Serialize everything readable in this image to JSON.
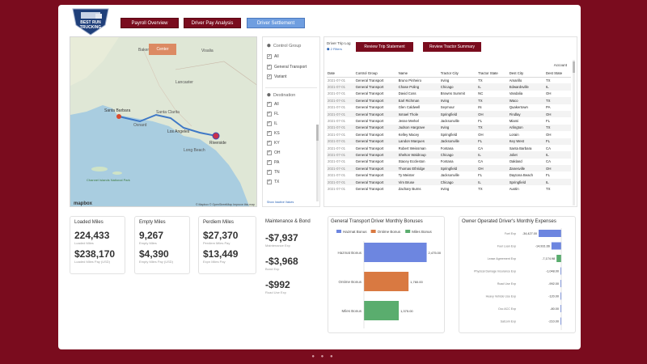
{
  "logo": {
    "line1": "BEST RUN",
    "line2": "TRUCKING"
  },
  "nav": {
    "payroll": "Payroll Overview",
    "driver_pay": "Driver Pay Analysis",
    "settlement": "Driver Settlement"
  },
  "map": {
    "center_button": "Center",
    "places": [
      "Bakersfield",
      "Visalia",
      "Lancaster",
      "Santa Barbara",
      "Oxnard",
      "Santa Clarita",
      "Los Angeles",
      "Long Beach",
      "Riverside",
      "Channel Islands National Park"
    ],
    "attribution": "© Mapbox © OpenStreetMap Improve this map",
    "brand": "mapbox"
  },
  "filters": {
    "control_group": {
      "title": "Control Group",
      "items": [
        "All",
        "General Transport",
        "Variant"
      ]
    },
    "destination": {
      "title": "Destination",
      "items": [
        "All",
        "FL",
        "IL",
        "KS",
        "KY",
        "OH",
        "PA",
        "TN",
        "TX"
      ]
    },
    "show_inactive": "Show Inactive Values"
  },
  "trip_log": {
    "title": "Driver Trip Log",
    "filters_label": "2 Filters",
    "btn_trip": "Review Trip Statement",
    "btn_tractor": "Review Tractor Summary",
    "account_label": "Account",
    "columns": [
      "Date",
      "Control Group",
      "Name",
      "Tractor City",
      "Tractor State",
      "Dest City",
      "Dest State"
    ],
    "rows": [
      [
        "2021-07-01",
        "General Transport",
        "Bruno Pinheiro",
        "Irving",
        "TX",
        "Amarillo",
        "TX"
      ],
      [
        "2021-07-01",
        "General Transport",
        "Chase Poling",
        "Chicago",
        "IL",
        "Edwardsville",
        "IL"
      ],
      [
        "2021-07-01",
        "General Transport",
        "David Coss",
        "Browns Summit",
        "NC",
        "Vandalia",
        "OH"
      ],
      [
        "2021-07-01",
        "General Transport",
        "Earl Richman",
        "Irving",
        "TX",
        "Waco",
        "TX"
      ],
      [
        "2021-07-01",
        "General Transport",
        "Glen Caldwell",
        "Seymour",
        "IN",
        "Quakertown",
        "PA"
      ],
      [
        "2021-07-01",
        "General Transport",
        "Ismael Thole",
        "Springfield",
        "OH",
        "Findlay",
        "OH"
      ],
      [
        "2021-07-01",
        "General Transport",
        "Jesse Merkel",
        "Jacksonville",
        "FL",
        "Miami",
        "FL"
      ],
      [
        "2021-07-01",
        "General Transport",
        "Judson Hargrave",
        "Irving",
        "TX",
        "Arlington",
        "TX"
      ],
      [
        "2021-07-01",
        "General Transport",
        "Kelley Macey",
        "Springfield",
        "OH",
        "Lorain",
        "OH"
      ],
      [
        "2021-07-01",
        "General Transport",
        "Landon Marques",
        "Jacksonville",
        "FL",
        "Key West",
        "FL"
      ],
      [
        "2021-07-01",
        "General Transport",
        "Robert Weissman",
        "Fontana",
        "CA",
        "Santa Barbara",
        "CA"
      ],
      [
        "2021-07-01",
        "General Transport",
        "Shelton Waldroup",
        "Chicago",
        "IL",
        "Joliet",
        "IL"
      ],
      [
        "2021-07-01",
        "General Transport",
        "Stacey Eccleston",
        "Fontana",
        "CA",
        "Oakland",
        "CA"
      ],
      [
        "2021-07-01",
        "General Transport",
        "Thomas Ethridge",
        "Springfield",
        "OH",
        "Zanesville",
        "OH"
      ],
      [
        "2021-07-01",
        "General Transport",
        "Ty Meister",
        "Jacksonville",
        "FL",
        "Daytona Beach",
        "FL"
      ],
      [
        "2021-07-01",
        "General Transport",
        "Vim Bruse",
        "Chicago",
        "IL",
        "Springfield",
        "IL"
      ],
      [
        "2021-07-01",
        "General Transport",
        "Zachary Burns",
        "Irving",
        "TX",
        "Austin",
        "TX"
      ]
    ]
  },
  "kpis": {
    "loaded": {
      "title": "Loaded Miles",
      "v1": "224,433",
      "l1": "Loaded Miles",
      "v2": "$238,170",
      "l2": "Loaded Miles Pay (USD)"
    },
    "empty": {
      "title": "Empty Miles",
      "v1": "9,267",
      "l1": "Empty Miles",
      "v2": "$4,390",
      "l2": "Empty Miles Pay (USD)"
    },
    "perdiem": {
      "title": "Perdiem Miles",
      "v1": "$27,370",
      "l1": "Perdiem Miles Pay",
      "v2": "$13,449",
      "l2": "Expn Miles Pay"
    }
  },
  "maintenance": {
    "title": "Maintenance & Bond",
    "v1": "-$7,937",
    "l1": "Maintenance Exp",
    "v2": "-$3,968",
    "l2": "Bond Exp",
    "v3": "-$992",
    "l3": "Road Use Exp"
  },
  "chart_data": [
    {
      "type": "bar",
      "title": "General Transport Driver Monthly Bonuses",
      "orientation": "horizontal",
      "legend_position": "top",
      "categories": [
        "Hazmat Bonus",
        "Ontime Bonus",
        "Miles Bonus"
      ],
      "series": [
        {
          "name": "Hazmat Bonus",
          "values": [
            2475,
            null,
            null
          ],
          "color": "#6d86e0"
        },
        {
          "name": "Ontime Bonus",
          "values": [
            null,
            1760,
            null
          ],
          "color": "#d97941"
        },
        {
          "name": "Miles Bonus",
          "values": [
            null,
            null,
            1375
          ],
          "color": "#5aad6e"
        }
      ],
      "data_labels": [
        "2,475.00",
        "1,760.00",
        "1,375.00"
      ],
      "xlim": [
        0,
        3000
      ]
    },
    {
      "type": "bar",
      "title": "Owner Operated Driver's Monthly Expenses",
      "orientation": "horizontal",
      "categories": [
        "Fuel Exp",
        "Fuel Loan Exp",
        "Lease Agreement Exp",
        "Physical Damage Insurance Exp",
        "Road Use Exp",
        "Heavy Vehicle Use Exp",
        "Occ ACC Exp",
        "Satcom Exp"
      ],
      "values": [
        -34427,
        -14931.66,
        -7174.98,
        -1048,
        -992,
        -120,
        -80,
        -210
      ],
      "data_labels": [
        "-34,427.00",
        "-14,931.66",
        "-7,174.98",
        "-1,048.00",
        "-992.00",
        "-120.00",
        "-80.00",
        "-210.00"
      ],
      "colors": {
        "negative": "#6d86e0",
        "highlight": "#5aad6e"
      },
      "xlim": [
        -40000,
        0
      ]
    }
  ]
}
